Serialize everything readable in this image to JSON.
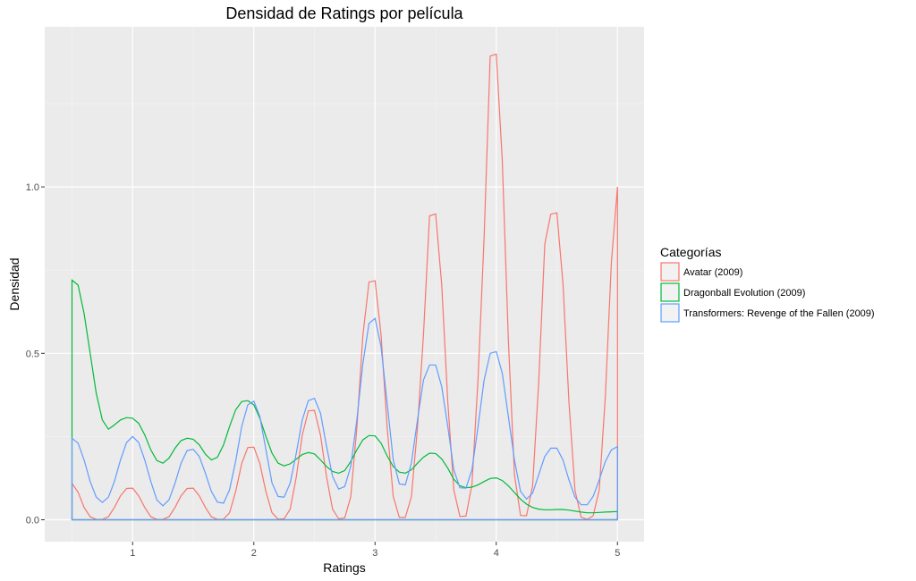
{
  "chart_data": {
    "type": "area",
    "title": "Densidad de Ratings por película",
    "xlabel": "Ratings",
    "ylabel": "Densidad",
    "xlim": [
      0.5,
      5.0
    ],
    "ylim": [
      0.0,
      1.4
    ],
    "x_ticks": [
      1,
      2,
      3,
      4,
      5
    ],
    "x_tick_labels": [
      "1",
      "2",
      "3",
      "4",
      "5"
    ],
    "y_ticks": [
      0.0,
      0.5,
      1.0
    ],
    "y_tick_labels": [
      "0.0",
      "0.5",
      "1.0"
    ],
    "grid": true,
    "legend": {
      "title": "Categorías",
      "position": "right"
    },
    "series": [
      {
        "name": "Avatar (2009)",
        "color": "#F8766D",
        "x": [
          0.5,
          0.55,
          0.6,
          0.65,
          0.7,
          0.75,
          0.8,
          0.85,
          0.9,
          0.95,
          1.0,
          1.05,
          1.1,
          1.15,
          1.2,
          1.25,
          1.3,
          1.35,
          1.4,
          1.45,
          1.5,
          1.55,
          1.6,
          1.65,
          1.7,
          1.75,
          1.8,
          1.85,
          1.9,
          1.95,
          2.0,
          2.05,
          2.1,
          2.15,
          2.2,
          2.25,
          2.3,
          2.35,
          2.4,
          2.45,
          2.5,
          2.55,
          2.6,
          2.65,
          2.7,
          2.75,
          2.8,
          2.85,
          2.9,
          2.95,
          3.0,
          3.05,
          3.1,
          3.15,
          3.2,
          3.25,
          3.3,
          3.35,
          3.4,
          3.45,
          3.5,
          3.55,
          3.6,
          3.65,
          3.7,
          3.75,
          3.8,
          3.85,
          3.9,
          3.95,
          4.0,
          4.05,
          4.1,
          4.15,
          4.2,
          4.25,
          4.3,
          4.35,
          4.4,
          4.45,
          4.5,
          4.55,
          4.6,
          4.65,
          4.7,
          4.75,
          4.8,
          4.85,
          4.9,
          4.95,
          5.0
        ],
        "y": [
          0.109,
          0.083,
          0.037,
          0.009,
          0.001,
          0.001,
          0.009,
          0.037,
          0.072,
          0.094,
          0.095,
          0.072,
          0.037,
          0.009,
          0.001,
          0.001,
          0.009,
          0.037,
          0.072,
          0.094,
          0.095,
          0.072,
          0.037,
          0.009,
          0.001,
          0.002,
          0.021,
          0.084,
          0.169,
          0.217,
          0.218,
          0.169,
          0.084,
          0.021,
          0.002,
          0.003,
          0.032,
          0.128,
          0.254,
          0.327,
          0.329,
          0.254,
          0.128,
          0.032,
          0.003,
          0.006,
          0.069,
          0.275,
          0.555,
          0.714,
          0.718,
          0.555,
          0.277,
          0.07,
          0.007,
          0.007,
          0.069,
          0.276,
          0.556,
          0.913,
          0.919,
          0.706,
          0.354,
          0.09,
          0.01,
          0.011,
          0.106,
          0.423,
          0.849,
          1.393,
          1.399,
          1.08,
          0.54,
          0.136,
          0.013,
          0.012,
          0.102,
          0.412,
          0.828,
          0.918,
          0.922,
          0.712,
          0.355,
          0.088,
          0.008,
          0.001,
          0.012,
          0.09,
          0.37,
          0.775,
          1.0
        ]
      },
      {
        "name": "Dragonball Evolution (2009)",
        "color": "#00BA38",
        "x": [
          0.5,
          0.55,
          0.6,
          0.65,
          0.7,
          0.75,
          0.8,
          0.85,
          0.9,
          0.95,
          1.0,
          1.05,
          1.1,
          1.15,
          1.2,
          1.25,
          1.3,
          1.35,
          1.4,
          1.45,
          1.5,
          1.55,
          1.6,
          1.65,
          1.7,
          1.75,
          1.8,
          1.85,
          1.9,
          1.95,
          2.0,
          2.05,
          2.1,
          2.15,
          2.2,
          2.25,
          2.3,
          2.35,
          2.4,
          2.45,
          2.5,
          2.55,
          2.6,
          2.65,
          2.7,
          2.75,
          2.8,
          2.85,
          2.9,
          2.95,
          3.0,
          3.05,
          3.1,
          3.15,
          3.2,
          3.25,
          3.3,
          3.35,
          3.4,
          3.45,
          3.5,
          3.55,
          3.6,
          3.65,
          3.7,
          3.75,
          3.8,
          3.85,
          3.9,
          3.95,
          4.0,
          4.05,
          4.1,
          4.15,
          4.2,
          4.25,
          4.3,
          4.35,
          4.4,
          4.45,
          4.5,
          4.55,
          4.6,
          4.65,
          4.7,
          4.75,
          4.8,
          4.85,
          4.9,
          4.95,
          5.0
        ],
        "y": [
          0.72,
          0.705,
          0.62,
          0.5,
          0.38,
          0.3,
          0.272,
          0.285,
          0.3,
          0.307,
          0.305,
          0.29,
          0.255,
          0.21,
          0.178,
          0.17,
          0.185,
          0.215,
          0.238,
          0.245,
          0.242,
          0.225,
          0.197,
          0.18,
          0.188,
          0.225,
          0.28,
          0.33,
          0.355,
          0.358,
          0.345,
          0.305,
          0.25,
          0.2,
          0.17,
          0.162,
          0.168,
          0.182,
          0.196,
          0.202,
          0.198,
          0.18,
          0.16,
          0.145,
          0.14,
          0.148,
          0.175,
          0.21,
          0.24,
          0.253,
          0.252,
          0.23,
          0.192,
          0.16,
          0.143,
          0.14,
          0.15,
          0.17,
          0.188,
          0.2,
          0.199,
          0.183,
          0.155,
          0.122,
          0.102,
          0.096,
          0.098,
          0.105,
          0.115,
          0.124,
          0.126,
          0.118,
          0.102,
          0.082,
          0.062,
          0.047,
          0.037,
          0.032,
          0.03,
          0.03,
          0.031,
          0.031,
          0.029,
          0.026,
          0.023,
          0.021,
          0.021,
          0.022,
          0.023,
          0.024,
          0.025
        ]
      },
      {
        "name": "Transformers: Revenge of the Fallen (2009)",
        "color": "#619CFF",
        "x": [
          0.5,
          0.55,
          0.6,
          0.65,
          0.7,
          0.75,
          0.8,
          0.85,
          0.9,
          0.95,
          1.0,
          1.05,
          1.1,
          1.15,
          1.2,
          1.25,
          1.3,
          1.35,
          1.4,
          1.45,
          1.5,
          1.55,
          1.6,
          1.65,
          1.7,
          1.75,
          1.8,
          1.85,
          1.9,
          1.95,
          2.0,
          2.05,
          2.1,
          2.15,
          2.2,
          2.25,
          2.3,
          2.35,
          2.4,
          2.45,
          2.5,
          2.55,
          2.6,
          2.65,
          2.7,
          2.75,
          2.8,
          2.85,
          2.9,
          2.95,
          3.0,
          3.05,
          3.1,
          3.15,
          3.2,
          3.25,
          3.3,
          3.35,
          3.4,
          3.45,
          3.5,
          3.55,
          3.6,
          3.65,
          3.7,
          3.75,
          3.8,
          3.85,
          3.9,
          3.95,
          4.0,
          4.05,
          4.1,
          4.15,
          4.2,
          4.25,
          4.3,
          4.35,
          4.4,
          4.45,
          4.5,
          4.55,
          4.6,
          4.65,
          4.7,
          4.75,
          4.8,
          4.85,
          4.9,
          4.95,
          5.0
        ],
        "y": [
          0.245,
          0.23,
          0.18,
          0.115,
          0.068,
          0.052,
          0.068,
          0.115,
          0.18,
          0.232,
          0.25,
          0.232,
          0.18,
          0.115,
          0.06,
          0.042,
          0.06,
          0.11,
          0.17,
          0.208,
          0.212,
          0.19,
          0.14,
          0.085,
          0.053,
          0.05,
          0.09,
          0.175,
          0.28,
          0.345,
          0.356,
          0.31,
          0.21,
          0.11,
          0.07,
          0.068,
          0.11,
          0.2,
          0.3,
          0.358,
          0.365,
          0.32,
          0.22,
          0.13,
          0.092,
          0.1,
          0.16,
          0.3,
          0.47,
          0.59,
          0.605,
          0.52,
          0.35,
          0.18,
          0.108,
          0.105,
          0.17,
          0.3,
          0.42,
          0.465,
          0.465,
          0.4,
          0.28,
          0.15,
          0.096,
          0.095,
          0.15,
          0.28,
          0.42,
          0.5,
          0.505,
          0.44,
          0.31,
          0.18,
          0.085,
          0.062,
          0.08,
          0.135,
          0.19,
          0.215,
          0.215,
          0.18,
          0.12,
          0.068,
          0.045,
          0.045,
          0.07,
          0.12,
          0.175,
          0.21,
          0.22
        ]
      }
    ]
  }
}
